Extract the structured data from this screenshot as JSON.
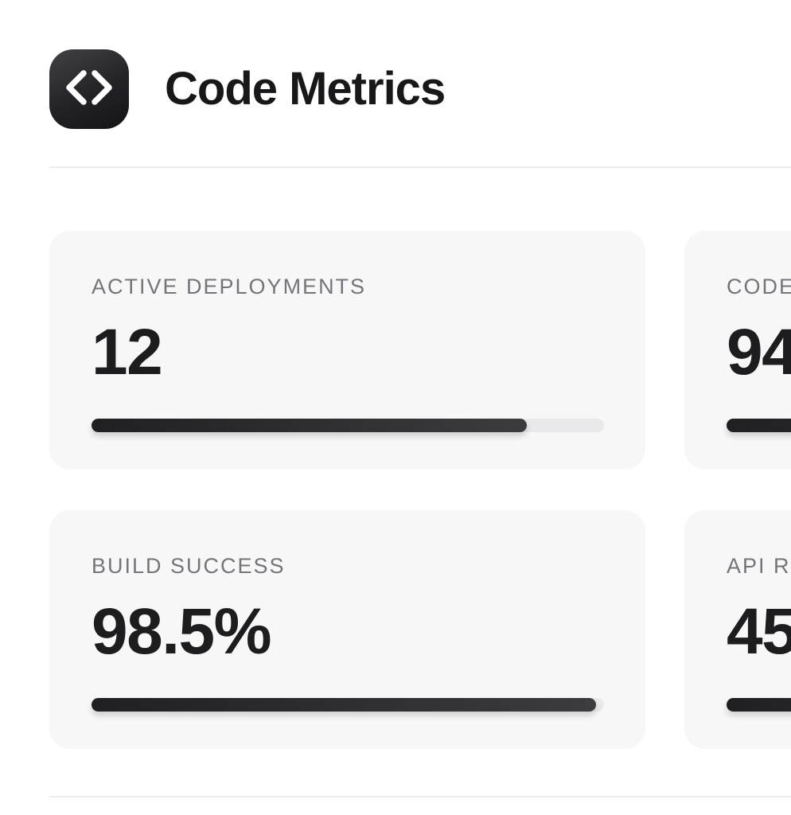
{
  "header": {
    "title": "Code Metrics",
    "icon": "code-angle-brackets-icon"
  },
  "colors": {
    "badge_gradient_start": "#414146",
    "badge_gradient_end": "#141416",
    "badge_glyph": "#ffffff",
    "card_background": "#f7f7f8",
    "label_text": "#74747a",
    "value_text": "#1d1d1f",
    "progress_track": "#e9e9eb",
    "progress_fill_start": "#202022",
    "progress_fill_end": "#3c3c3f",
    "divider": "#ececec"
  },
  "metrics": [
    {
      "label": "ACTIVE DEPLOYMENTS",
      "value": "12",
      "progress_percent": 85,
      "clipped_by_viewport": false
    },
    {
      "label": "CODE",
      "value": "94",
      "progress_percent": 90,
      "clipped_by_viewport": true
    },
    {
      "label": "BUILD SUCCESS",
      "value": "98.5%",
      "progress_percent": 98.5,
      "clipped_by_viewport": false
    },
    {
      "label": "API R",
      "value": "45",
      "progress_percent": 90,
      "clipped_by_viewport": true
    }
  ]
}
